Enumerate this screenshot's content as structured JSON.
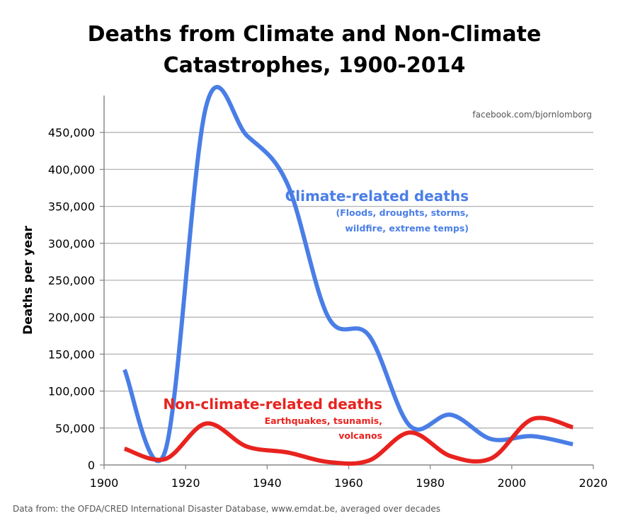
{
  "chart_data": {
    "type": "line",
    "title_line1": "Deaths from Climate and Non-Climate",
    "title_line2": "Catastrophes, 1900-2014",
    "ylabel": "Deaths per year",
    "xlabel": "",
    "xlim": [
      1900,
      2020
    ],
    "ylim": [
      0,
      500000
    ],
    "xticks": [
      "1900",
      "1920",
      "1940",
      "1960",
      "1980",
      "2000",
      "2020"
    ],
    "yticks": [
      "0",
      "50,000",
      "100,000",
      "150,000",
      "200,000",
      "250,000",
      "300,000",
      "350,000",
      "400,000",
      "450,000"
    ],
    "grid": "horizontal",
    "series": [
      {
        "name": "Climate-related deaths",
        "color": "#4a7ee6",
        "x": [
          1905,
          1915,
          1925,
          1935,
          1945,
          1955,
          1965,
          1975,
          1985,
          1995,
          2005,
          2015
        ],
        "values": [
          129000,
          19000,
          485000,
          446000,
          380000,
          200000,
          175000,
          53000,
          68000,
          35000,
          39000,
          28000
        ]
      },
      {
        "name": "Non-climate-related deaths",
        "color": "#e8231f",
        "x": [
          1905,
          1915,
          1925,
          1935,
          1945,
          1955,
          1965,
          1975,
          1985,
          1995,
          2005,
          2015
        ],
        "values": [
          22000,
          8000,
          56000,
          25000,
          17000,
          4000,
          6000,
          44000,
          12000,
          9000,
          62000,
          51000
        ]
      }
    ],
    "annotations": {
      "climate_main": "Climate-related deaths",
      "climate_sub1": "(Floods, droughts, storms,",
      "climate_sub2": "wildfire, extreme temps)",
      "nonclimate_main": "Non-climate-related deaths",
      "nonclimate_sub1": "Earthquakes, tsunamis,",
      "nonclimate_sub2": "volcanos"
    },
    "credit": "facebook.com/bjornlomborg",
    "source": "Data from: the OFDA/CRED International Disaster Database, www.emdat.be, averaged over decades"
  }
}
